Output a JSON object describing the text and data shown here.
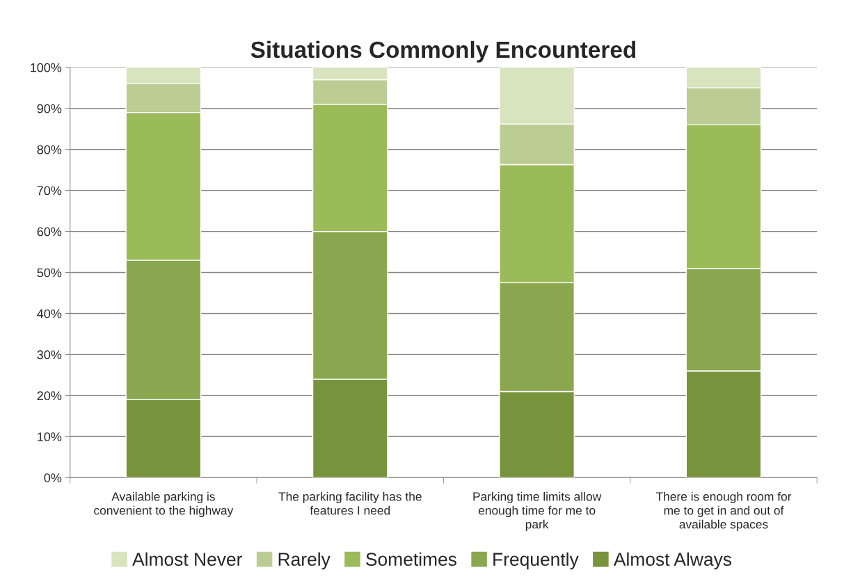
{
  "chart_data": {
    "type": "bar",
    "title": "Situations Commonly Encountered",
    "stacked": true,
    "categories": [
      "Available parking is\nconvenient to the highway",
      "The parking facility has the\nfeatures I need",
      "Parking time limits allow\nenough time for me to\npark",
      "There is enough room for\nme to get in and out of\navailable spaces"
    ],
    "series": [
      {
        "name": "Almost Always",
        "color": "#77933c",
        "values": [
          19,
          24,
          21,
          26
        ]
      },
      {
        "name": "Frequently",
        "color": "#8aa64f",
        "values": [
          34,
          36,
          26.5,
          25
        ]
      },
      {
        "name": "Sometimes",
        "color": "#9bbb59",
        "values": [
          36,
          31,
          28.8,
          35
        ]
      },
      {
        "name": "Rarely",
        "color": "#bbcd93",
        "values": [
          7,
          6,
          9.9,
          9
        ]
      },
      {
        "name": "Almost Never",
        "color": "#d7e4bd",
        "values": [
          4,
          3,
          13.8,
          5
        ]
      }
    ],
    "ylim": [
      0,
      100
    ],
    "yticks": [
      {
        "value": 0,
        "label": "0%"
      },
      {
        "value": 10,
        "label": "10%"
      },
      {
        "value": 20,
        "label": "20%"
      },
      {
        "value": 30,
        "label": "30%"
      },
      {
        "value": 40,
        "label": "40%"
      },
      {
        "value": 50,
        "label": "50%"
      },
      {
        "value": 60,
        "label": "60%"
      },
      {
        "value": 70,
        "label": "70%"
      },
      {
        "value": 80,
        "label": "80%"
      },
      {
        "value": 90,
        "label": "90%"
      },
      {
        "value": 100,
        "label": "100%"
      }
    ],
    "grid": "y",
    "legend": "bottom"
  }
}
